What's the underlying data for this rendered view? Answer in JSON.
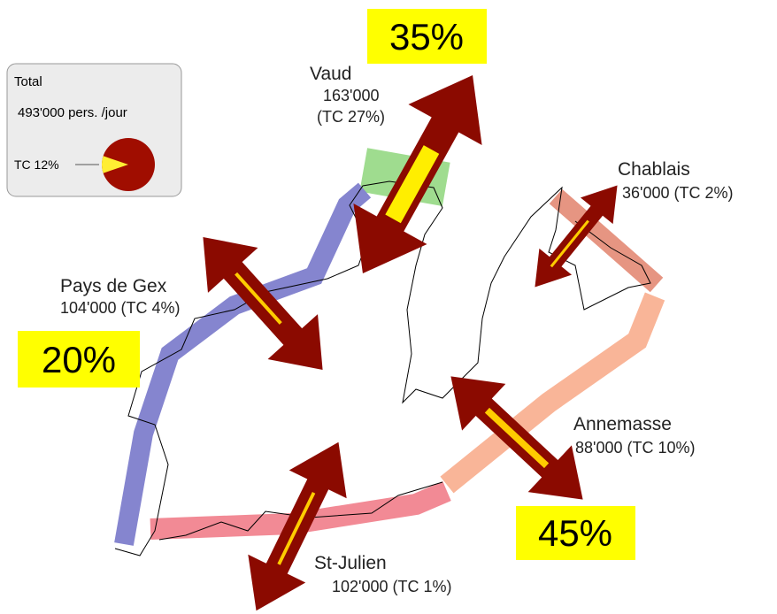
{
  "inset": {
    "title": "Total",
    "total": "493'000 pers. /jour",
    "tc": "TC 12%"
  },
  "regions": [
    {
      "name": "Vaud",
      "flow": "163'000",
      "tc": "(TC 27%)"
    },
    {
      "name": "Chablais",
      "flow": "36'000 (TC 2%)"
    },
    {
      "name": "Pays de Gex",
      "flow": "104'000 (TC 4%)"
    },
    {
      "name": "Annemasse",
      "flow": "88'000 (TC 10%)"
    },
    {
      "name": "St-Julien",
      "flow": "102'000 (TC 1%)"
    }
  ],
  "highlights": [
    "35%",
    "20%",
    "45%"
  ]
}
